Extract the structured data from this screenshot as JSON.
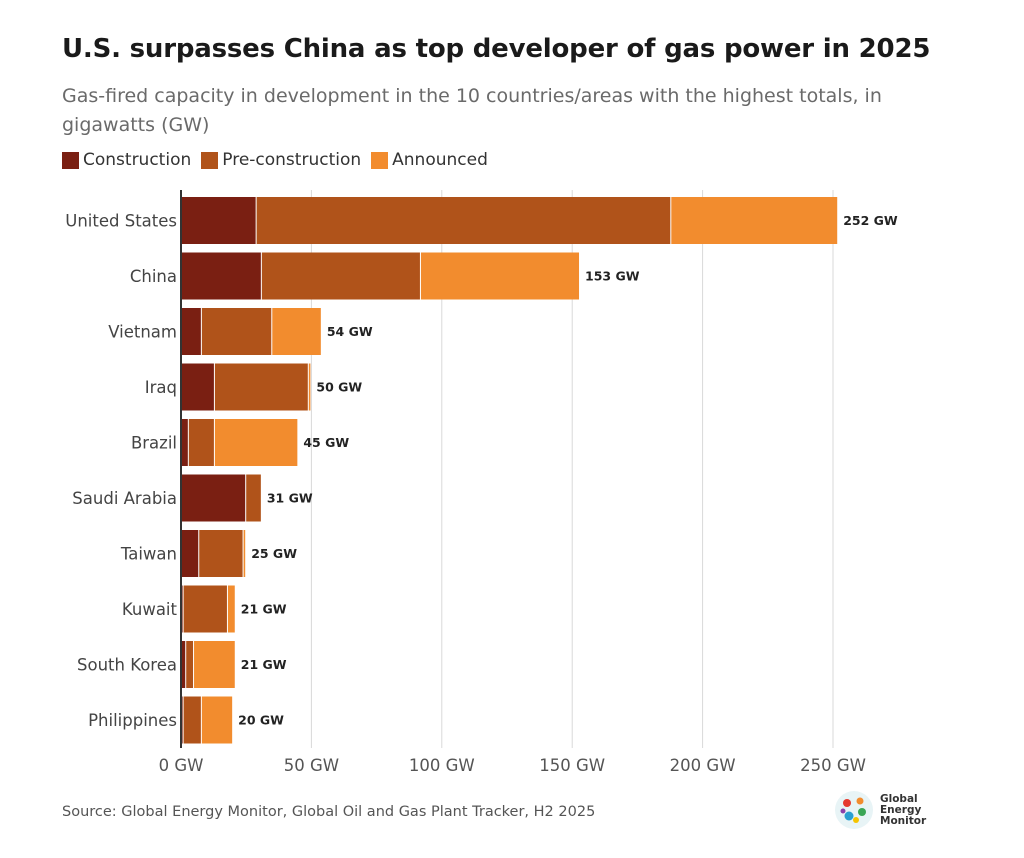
{
  "header": {
    "title": "U.S. surpasses China as top developer of gas power in 2025",
    "subtitle": "Gas-fired capacity in development in the 10 countries/areas with the highest totals, in gigawatts (GW)"
  },
  "legend": [
    {
      "label": "Construction",
      "color": "#7a1f12"
    },
    {
      "label": "Pre-construction",
      "color": "#b0531a"
    },
    {
      "label": "Announced",
      "color": "#f28c2e"
    }
  ],
  "footer": {
    "source": "Source: Global Energy Monitor, Global Oil and Gas Plant Tracker, H2 2025",
    "logo_line1": "Global",
    "logo_line2": "Energy",
    "logo_line3": "Monitor"
  },
  "chart_data": {
    "type": "bar",
    "orientation": "horizontal",
    "stacked": true,
    "categories": [
      "United States",
      "China",
      "Vietnam",
      "Iraq",
      "Brazil",
      "Saudi Arabia",
      "Taiwan",
      "Kuwait",
      "South Korea",
      "Philippines"
    ],
    "series": [
      {
        "name": "Construction",
        "color": "#7a1f12",
        "values": [
          29,
          31,
          8,
          13,
          3,
          25,
          7,
          1,
          2,
          1
        ]
      },
      {
        "name": "Pre-construction",
        "color": "#b0531a",
        "values": [
          159,
          61,
          27,
          36,
          10,
          6,
          17,
          17,
          3,
          7
        ]
      },
      {
        "name": "Announced",
        "color": "#f28c2e",
        "values": [
          64,
          61,
          19,
          1,
          32,
          0,
          1,
          3,
          16,
          12
        ]
      }
    ],
    "totals": [
      "252 GW",
      "153 GW",
      "54 GW",
      "50 GW",
      "45 GW",
      "31 GW",
      "25 GW",
      "21 GW",
      "21 GW",
      "20 GW"
    ],
    "xticks": [
      0,
      50,
      100,
      150,
      200,
      250
    ],
    "xtick_labels": [
      "0 GW",
      "50 GW",
      "100 GW",
      "150 GW",
      "200 GW",
      "250 GW"
    ],
    "xlim": [
      0,
      260
    ],
    "grid": true
  }
}
